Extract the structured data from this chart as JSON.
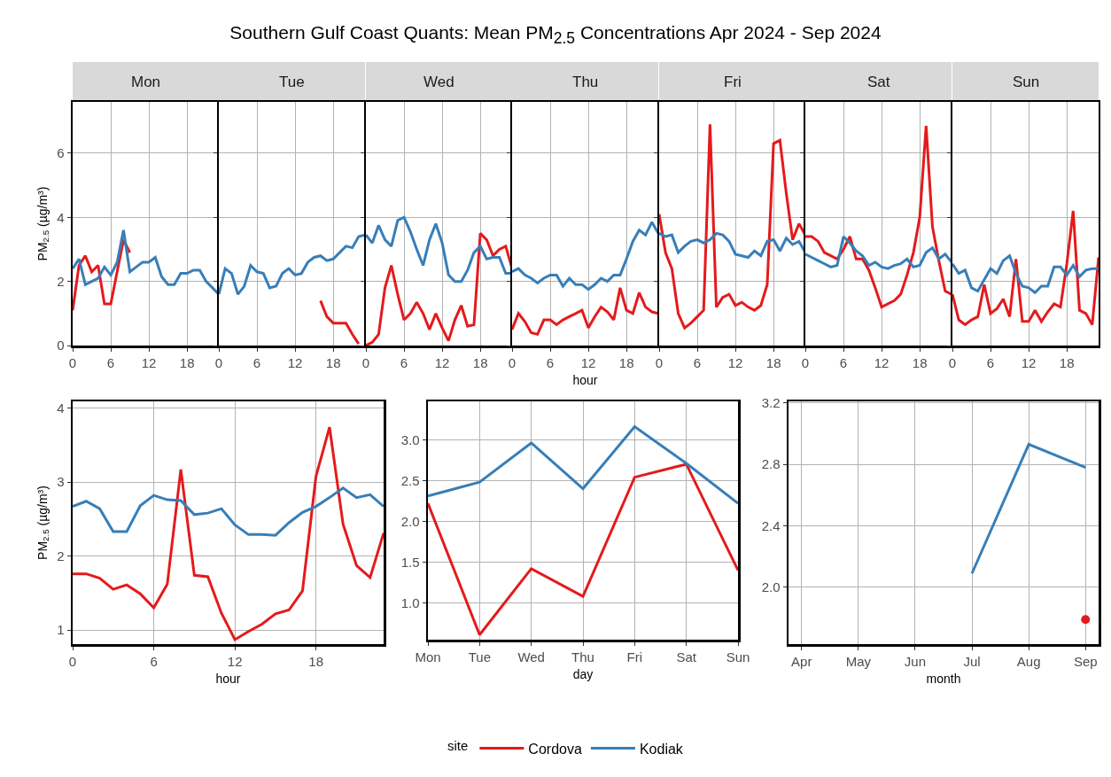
{
  "chart_data": [
    {
      "type": "line",
      "subtitle": "Mon",
      "ylabel": "PM$_{2.5}$ (µg/m³)",
      "x": [
        0,
        1,
        2,
        3,
        4,
        5,
        6,
        7,
        8,
        9,
        10,
        11,
        12,
        13,
        14,
        15,
        16,
        17,
        18,
        19,
        20,
        21,
        22,
        23
      ],
      "xlim": [
        0,
        23
      ],
      "xticks": [
        0,
        6,
        12,
        18
      ],
      "ylim": [
        0,
        7.6
      ],
      "yticks": [
        0,
        2,
        4,
        6
      ],
      "grid": true,
      "series": [
        {
          "color": "#e41a1c",
          "values": [
            1.1,
            2.5,
            2.8,
            2.3,
            2.5,
            1.3,
            1.3,
            2.3,
            3.3,
            2.9,
            null,
            null,
            null,
            null,
            null,
            null,
            null,
            null,
            null,
            null,
            null,
            null,
            null,
            null
          ]
        },
        {
          "color": "#377eb8",
          "values": [
            2.4,
            2.7,
            1.9,
            2.0,
            2.1,
            2.45,
            2.2,
            2.6,
            3.6,
            2.3,
            2.45,
            2.6,
            2.6,
            2.75,
            2.15,
            1.9,
            1.9,
            2.25,
            2.25,
            2.35,
            2.35,
            2.0,
            1.8,
            1.6
          ]
        }
      ]
    },
    {
      "type": "line",
      "subtitle": "Tue",
      "x": [
        0,
        1,
        2,
        3,
        4,
        5,
        6,
        7,
        8,
        9,
        10,
        11,
        12,
        13,
        14,
        15,
        16,
        17,
        18,
        19,
        20,
        21,
        22,
        23
      ],
      "xlim": [
        0,
        23
      ],
      "xticks": [
        0,
        6,
        12,
        18
      ],
      "ylim": [
        0,
        7.6
      ],
      "yticks": [
        0,
        2,
        4,
        6
      ],
      "grid": true,
      "tick_labels": "x",
      "series": [
        {
          "color": "#e41a1c",
          "values": [
            null,
            null,
            null,
            null,
            null,
            null,
            null,
            null,
            null,
            null,
            null,
            null,
            null,
            null,
            null,
            null,
            1.4,
            0.9,
            0.7,
            0.7,
            0.7,
            0.35,
            0.05,
            null
          ]
        },
        {
          "color": "#377eb8",
          "values": [
            1.6,
            2.4,
            2.25,
            1.6,
            1.85,
            2.5,
            2.3,
            2.25,
            1.8,
            1.85,
            2.25,
            2.4,
            2.2,
            2.25,
            2.6,
            2.75,
            2.8,
            2.65,
            2.7,
            2.9,
            3.1,
            3.05,
            3.4,
            3.45
          ]
        }
      ]
    },
    {
      "type": "line",
      "subtitle": "Wed",
      "x": [
        0,
        1,
        2,
        3,
        4,
        5,
        6,
        7,
        8,
        9,
        10,
        11,
        12,
        13,
        14,
        15,
        16,
        17,
        18,
        19,
        20,
        21,
        22,
        23
      ],
      "xlim": [
        0,
        23
      ],
      "xticks": [
        0,
        6,
        12,
        18
      ],
      "ylim": [
        0,
        7.6
      ],
      "yticks": [
        0,
        2,
        4,
        6
      ],
      "grid": true,
      "tick_labels": "x",
      "series": [
        {
          "color": "#e41a1c",
          "values": [
            0.0,
            0.1,
            0.35,
            1.8,
            2.5,
            1.6,
            0.8,
            1.0,
            1.35,
            1.0,
            0.5,
            1.0,
            0.55,
            0.15,
            0.8,
            1.25,
            0.6,
            0.65,
            3.5,
            3.3,
            2.8,
            3.0,
            3.1,
            2.4
          ]
        },
        {
          "color": "#377eb8",
          "values": [
            3.45,
            3.2,
            3.75,
            3.3,
            3.1,
            3.9,
            4.0,
            3.55,
            3.0,
            2.5,
            3.3,
            3.8,
            3.2,
            2.2,
            2.0,
            2.0,
            2.35,
            2.9,
            3.1,
            2.7,
            2.75,
            2.75,
            2.25,
            2.25
          ]
        }
      ]
    },
    {
      "type": "line",
      "title": "Southern Gulf Coast Quants: Mean PM$_{2.5}$ Concentrations Apr 2024 - Sep 2024",
      "subtitle": "Thu",
      "xlabel": "hour",
      "x": [
        0,
        1,
        2,
        3,
        4,
        5,
        6,
        7,
        8,
        9,
        10,
        11,
        12,
        13,
        14,
        15,
        16,
        17,
        18,
        19,
        20,
        21,
        22,
        23
      ],
      "xlim": [
        0,
        23
      ],
      "xticks": [
        0,
        6,
        12,
        18
      ],
      "ylim": [
        0,
        7.6
      ],
      "yticks": [
        0,
        2,
        4,
        6
      ],
      "grid": true,
      "tick_labels": "x",
      "series": [
        {
          "color": "#e41a1c",
          "values": [
            0.5,
            1.0,
            0.75,
            0.4,
            0.35,
            0.8,
            0.8,
            0.65,
            0.8,
            0.9,
            1.0,
            1.1,
            0.55,
            0.9,
            1.2,
            1.05,
            0.8,
            1.8,
            1.1,
            1.0,
            1.65,
            1.2,
            1.05,
            1.0
          ]
        },
        {
          "color": "#377eb8",
          "values": [
            2.3,
            2.4,
            2.2,
            2.1,
            1.95,
            2.1,
            2.2,
            2.2,
            1.85,
            2.1,
            1.9,
            1.9,
            1.75,
            1.9,
            2.1,
            2.0,
            2.2,
            2.2,
            2.7,
            3.25,
            3.6,
            3.45,
            3.85,
            3.5
          ]
        }
      ]
    },
    {
      "type": "line",
      "subtitle": "Fri",
      "x": [
        0,
        1,
        2,
        3,
        4,
        5,
        6,
        7,
        8,
        9,
        10,
        11,
        12,
        13,
        14,
        15,
        16,
        17,
        18,
        19,
        20,
        21,
        22,
        23
      ],
      "xlim": [
        0,
        23
      ],
      "xticks": [
        0,
        6,
        12,
        18
      ],
      "ylim": [
        0,
        7.6
      ],
      "yticks": [
        0,
        2,
        4,
        6
      ],
      "grid": true,
      "tick_labels": "x",
      "series": [
        {
          "color": "#e41a1c",
          "values": [
            4.1,
            2.9,
            2.4,
            1.0,
            0.55,
            0.7,
            0.9,
            1.1,
            6.9,
            1.2,
            1.5,
            1.6,
            1.25,
            1.35,
            1.2,
            1.1,
            1.25,
            1.9,
            6.3,
            6.4,
            4.75,
            3.3,
            3.8,
            3.45
          ]
        },
        {
          "color": "#377eb8",
          "values": [
            3.5,
            3.4,
            3.45,
            2.9,
            3.1,
            3.25,
            3.3,
            3.2,
            3.3,
            3.5,
            3.45,
            3.25,
            2.85,
            2.8,
            2.75,
            2.95,
            2.8,
            3.25,
            3.3,
            2.95,
            3.35,
            3.15,
            3.25,
            2.9
          ]
        }
      ]
    },
    {
      "type": "line",
      "subtitle": "Sat",
      "x": [
        0,
        1,
        2,
        3,
        4,
        5,
        6,
        7,
        8,
        9,
        10,
        11,
        12,
        13,
        14,
        15,
        16,
        17,
        18,
        19,
        20,
        21,
        22,
        23
      ],
      "xlim": [
        0,
        23
      ],
      "xticks": [
        0,
        6,
        12,
        18
      ],
      "ylim": [
        0,
        7.6
      ],
      "yticks": [
        0,
        2,
        4,
        6
      ],
      "grid": true,
      "tick_labels": "x",
      "series": [
        {
          "color": "#e41a1c",
          "values": [
            3.4,
            3.4,
            3.25,
            2.9,
            2.8,
            2.7,
            3.0,
            3.4,
            2.7,
            2.7,
            2.35,
            1.8,
            1.2,
            1.3,
            1.4,
            1.6,
            2.2,
            2.9,
            4.0,
            6.85,
            3.7,
            2.65,
            1.7,
            1.6
          ]
        },
        {
          "color": "#377eb8",
          "values": [
            2.85,
            2.75,
            2.65,
            2.55,
            2.45,
            2.5,
            3.4,
            3.2,
            2.95,
            2.8,
            2.5,
            2.6,
            2.45,
            2.4,
            2.5,
            2.55,
            2.7,
            2.45,
            2.5,
            2.9,
            3.05,
            2.7,
            2.85,
            2.6
          ]
        }
      ]
    },
    {
      "type": "line",
      "subtitle": "Sun",
      "x": [
        0,
        1,
        2,
        3,
        4,
        5,
        6,
        7,
        8,
        9,
        10,
        11,
        12,
        13,
        14,
        15,
        16,
        17,
        18,
        19,
        20,
        21,
        22,
        23
      ],
      "xlim": [
        0,
        23
      ],
      "xticks": [
        0,
        6,
        12,
        18
      ],
      "ylim": [
        0,
        7.6
      ],
      "yticks": [
        0,
        2,
        4,
        6
      ],
      "grid": true,
      "tick_labels": "x",
      "series": [
        {
          "color": "#e41a1c",
          "values": [
            1.6,
            0.8,
            0.65,
            0.8,
            0.9,
            1.9,
            1.0,
            1.15,
            1.45,
            0.9,
            2.7,
            0.75,
            0.75,
            1.1,
            0.75,
            1.05,
            1.3,
            1.2,
            2.55,
            4.2,
            1.1,
            1.0,
            0.65,
            2.75
          ]
        },
        {
          "color": "#377eb8",
          "values": [
            2.55,
            2.25,
            2.35,
            1.8,
            1.7,
            2.05,
            2.4,
            2.25,
            2.65,
            2.8,
            2.25,
            1.85,
            1.8,
            1.65,
            1.85,
            1.85,
            2.45,
            2.45,
            2.2,
            2.5,
            2.15,
            2.35,
            2.4,
            2.4
          ]
        }
      ]
    },
    {
      "type": "line",
      "xlabel": "hour",
      "ylabel": "PM$_{2.5}$ (µg/m³)",
      "x": [
        0,
        1,
        2,
        3,
        4,
        5,
        6,
        7,
        8,
        9,
        10,
        11,
        12,
        13,
        14,
        15,
        16,
        17,
        18,
        19,
        20,
        21,
        22,
        23
      ],
      "xlim": [
        0,
        23
      ],
      "xticks": [
        0,
        6,
        12,
        18
      ],
      "ylim": [
        0.81,
        4.09
      ],
      "yticks": [
        1,
        2,
        3,
        4
      ],
      "grid": true,
      "series": [
        {
          "color": "#e41a1c",
          "values": [
            1.76,
            1.76,
            1.7,
            1.55,
            1.61,
            1.49,
            1.3,
            1.62,
            3.17,
            1.74,
            1.72,
            1.23,
            0.87,
            0.98,
            1.08,
            1.22,
            1.27,
            1.53,
            3.08,
            3.74,
            2.43,
            1.87,
            1.71,
            2.31
          ]
        },
        {
          "color": "#377eb8",
          "values": [
            2.67,
            2.74,
            2.64,
            2.33,
            2.33,
            2.68,
            2.82,
            2.76,
            2.75,
            2.56,
            2.58,
            2.64,
            2.42,
            2.29,
            2.29,
            2.28,
            2.45,
            2.59,
            2.67,
            2.79,
            2.92,
            2.79,
            2.83,
            2.67
          ]
        }
      ]
    },
    {
      "type": "line",
      "xlabel": "day",
      "legend_title": "site",
      "legend": "bottom",
      "categories": [
        "Mon",
        "Tue",
        "Wed",
        "Thu",
        "Fri",
        "Sat",
        "Sun"
      ],
      "ylim": [
        0.55,
        3.47
      ],
      "yticks": [
        {
          "value": 1,
          "label": "1.0"
        },
        {
          "value": 1.5,
          "label": "1.5"
        },
        {
          "value": 2,
          "label": "2.0"
        },
        {
          "value": 2.5,
          "label": "2.5"
        },
        {
          "value": 3,
          "label": "3.0"
        }
      ],
      "grid": true,
      "series": [
        {
          "name": "Cordova",
          "color": "#e41a1c",
          "values": [
            2.22,
            0.61,
            1.42,
            1.08,
            2.54,
            2.7,
            1.4
          ]
        },
        {
          "name": "Kodiak",
          "color": "#377eb8",
          "values": [
            2.31,
            2.48,
            2.96,
            2.4,
            3.16,
            2.71,
            2.22
          ]
        }
      ]
    },
    {
      "type": "line",
      "xlabel": "month",
      "categories": [
        "Apr",
        "May",
        "Jun",
        "Jul",
        "Aug",
        "Sep"
      ],
      "ylim": [
        1.63,
        3.21
      ],
      "yticks": [
        {
          "value": 2,
          "label": "2.0"
        },
        {
          "value": 2.4,
          "label": "2.4"
        },
        {
          "value": 2.8,
          "label": "2.8"
        },
        {
          "value": 3.2,
          "label": "3.2"
        }
      ],
      "grid": true,
      "series": [
        {
          "type": "scatter",
          "color": "#e41a1c",
          "values": [
            null,
            null,
            null,
            null,
            null,
            1.79
          ]
        },
        {
          "color": "#377eb8",
          "values": [
            null,
            null,
            null,
            2.09,
            2.93,
            2.78
          ]
        }
      ]
    }
  ]
}
